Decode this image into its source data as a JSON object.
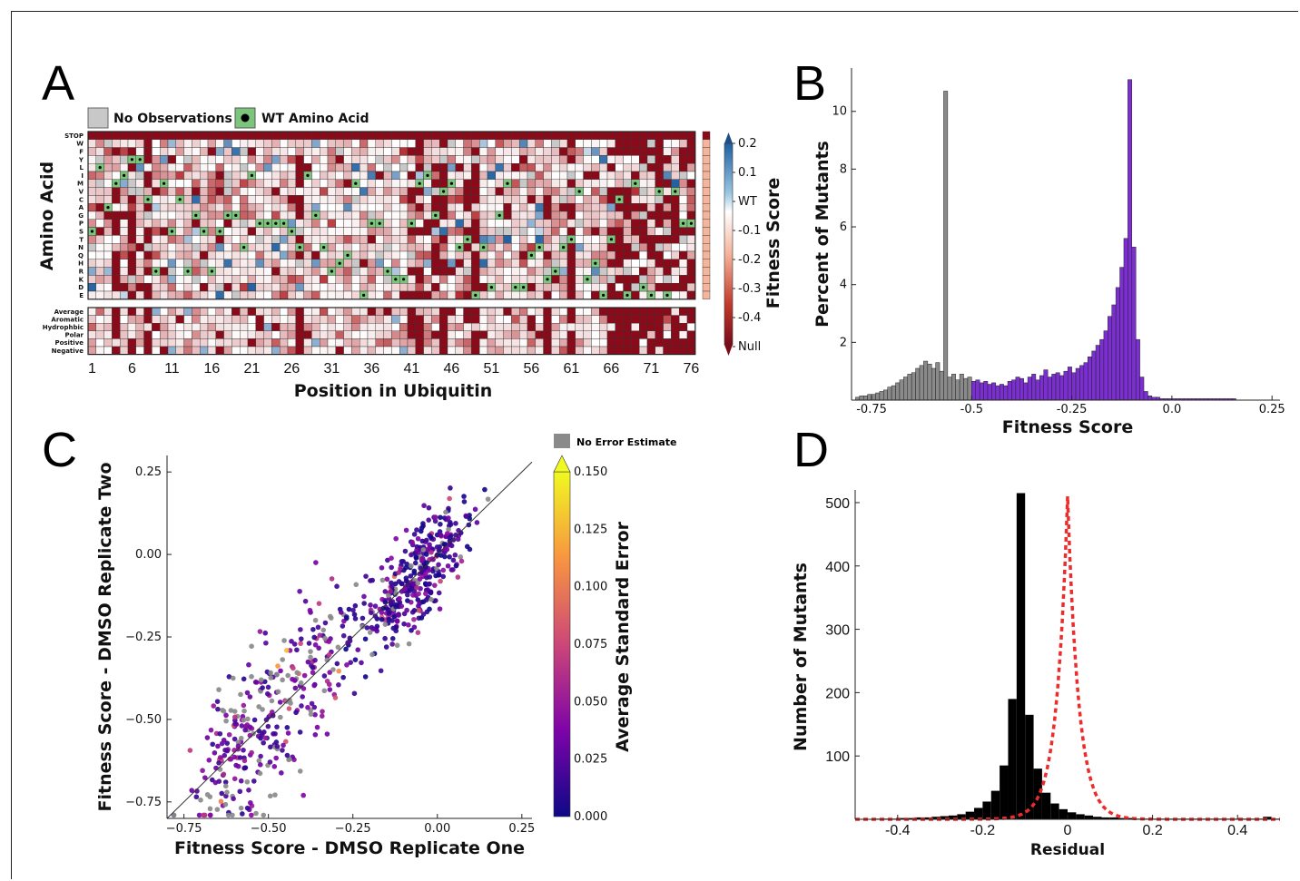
{
  "panels": {
    "a": "A",
    "b": "B",
    "c": "C",
    "d": "D"
  },
  "panel_a": {
    "legend_no_obs": "No Observations",
    "legend_wt": "WT Amino Acid",
    "ylabel": "Amino Acid",
    "xlabel": "Position in Ubiquitin",
    "amino_acids": [
      "STOP",
      "W",
      "F",
      "Y",
      "L",
      "I",
      "M",
      "V",
      "C",
      "A",
      "G",
      "P",
      "S",
      "T",
      "N",
      "Q",
      "H",
      "R",
      "K",
      "D",
      "E"
    ],
    "groups": [
      "Average",
      "Aromatic",
      "Hydrophbic",
      "Polar",
      "Positive",
      "Negative"
    ],
    "x_ticks": [
      "1",
      "6",
      "11",
      "16",
      "21",
      "26",
      "31",
      "36",
      "41",
      "46",
      "51",
      "56",
      "61",
      "66",
      "71",
      "76"
    ],
    "n_positions": 76,
    "colorbar_ticks": [
      "0.2",
      "0.1",
      "WT",
      "-0.1",
      "-0.2",
      "-0.3",
      "-0.4",
      "Null"
    ],
    "colorbar_label": "Fitness Score",
    "colors": {
      "null": "#8b0a1a",
      "wt": "#ffffff",
      "nodata": "#c8c8c8",
      "pos": "#1f5fa0",
      "neg": "#c0392b",
      "wt_marker": "#7cc57c"
    }
  },
  "chart_data": [
    {
      "type": "heatmap",
      "panel": "A",
      "xlabel": "Position in Ubiquitin",
      "ylabel": "Amino Acid",
      "x": "1-76",
      "y": [
        "STOP",
        "W",
        "F",
        "Y",
        "L",
        "I",
        "M",
        "V",
        "C",
        "A",
        "G",
        "P",
        "S",
        "T",
        "N",
        "Q",
        "H",
        "R",
        "K",
        "D",
        "E"
      ],
      "colorbar": {
        "label": "Fitness Score",
        "range": [
          -0.5,
          0.2
        ]
      }
    },
    {
      "type": "bar",
      "panel": "B",
      "xlabel": "Fitness Score",
      "ylabel": "Percent of Mutants",
      "xlim": [
        -0.8,
        0.27
      ],
      "ylim": [
        0,
        11.5
      ],
      "x_ticks": [
        "-0.75",
        "-0.5",
        "-0.25",
        "0.0",
        "0.25"
      ],
      "y_ticks": [
        "2",
        "4",
        "6",
        "8",
        "10"
      ],
      "bin_width": 0.01,
      "bin_start": -0.79,
      "gray_until": -0.5,
      "values": [
        0.1,
        0.15,
        0.15,
        0.2,
        0.2,
        0.25,
        0.3,
        0.35,
        0.45,
        0.5,
        0.6,
        0.7,
        0.8,
        0.9,
        0.95,
        1.1,
        1.2,
        1.35,
        1.25,
        1.1,
        1.3,
        1.0,
        10.7,
        0.8,
        0.9,
        0.7,
        0.9,
        0.75,
        0.8,
        0.65,
        0.7,
        0.6,
        0.65,
        0.55,
        0.6,
        0.5,
        0.55,
        0.5,
        0.65,
        0.7,
        0.8,
        0.75,
        0.6,
        0.8,
        0.9,
        0.7,
        0.85,
        1.05,
        0.8,
        0.9,
        0.95,
        0.85,
        1.0,
        1.15,
        0.95,
        1.1,
        1.2,
        1.3,
        1.5,
        1.7,
        1.9,
        2.1,
        2.4,
        2.9,
        3.3,
        3.9,
        4.6,
        5.6,
        11.1,
        5.3,
        2.1,
        0.8,
        0.3,
        0.15,
        0.1,
        0.1,
        0.05,
        0.05,
        0.05,
        0.05,
        0.05,
        0.05,
        0.05,
        0.05,
        0.05,
        0.05,
        0.05,
        0.05,
        0.05,
        0.05,
        0.05,
        0.05,
        0.05,
        0.05,
        0.05
      ],
      "colors": {
        "gray": "#8a8a8a",
        "purple": "#7b2fd0"
      }
    },
    {
      "type": "scatter",
      "panel": "C",
      "xlabel": "Fitness Score - DMSO Replicate One",
      "ylabel": "Fitness Score - DMSO Replicate Two",
      "xlim": [
        -0.8,
        0.28
      ],
      "ylim": [
        -0.8,
        0.3
      ],
      "x_ticks": [
        "−0.75",
        "−0.50",
        "−0.25",
        "0.00",
        "0.25"
      ],
      "y_ticks": [
        "0.25",
        "0.00",
        "−0.25",
        "−0.50",
        "−0.75"
      ],
      "n_points": 700,
      "colorbar": {
        "label": "Average Standard Error",
        "ticks": [
          "0.150",
          "0.125",
          "0.100",
          "0.075",
          "0.050",
          "0.025",
          "0.000"
        ],
        "no_error": "No Error Estimate"
      }
    },
    {
      "type": "bar",
      "panel": "D",
      "xlabel": "Residual",
      "ylabel": "Number of Mutants",
      "xlim": [
        -0.5,
        0.5
      ],
      "ylim": [
        0,
        520
      ],
      "x_ticks": [
        "-0.4",
        "-0.2",
        "0",
        "0.2",
        "0.4"
      ],
      "y_ticks": [
        "100",
        "200",
        "300",
        "400",
        "500"
      ],
      "bin_width": 0.02,
      "bin_start": -0.5,
      "values": [
        0,
        0,
        1,
        1,
        1,
        2,
        2,
        3,
        3,
        4,
        5,
        6,
        8,
        12,
        18,
        28,
        45,
        85,
        190,
        515,
        165,
        80,
        42,
        25,
        16,
        11,
        8,
        6,
        4,
        3,
        3,
        2,
        2,
        1,
        1,
        1,
        1,
        1,
        1,
        1,
        1,
        1,
        1,
        1,
        1,
        1,
        1,
        1,
        4,
        1
      ],
      "fit": "laplace"
    }
  ]
}
